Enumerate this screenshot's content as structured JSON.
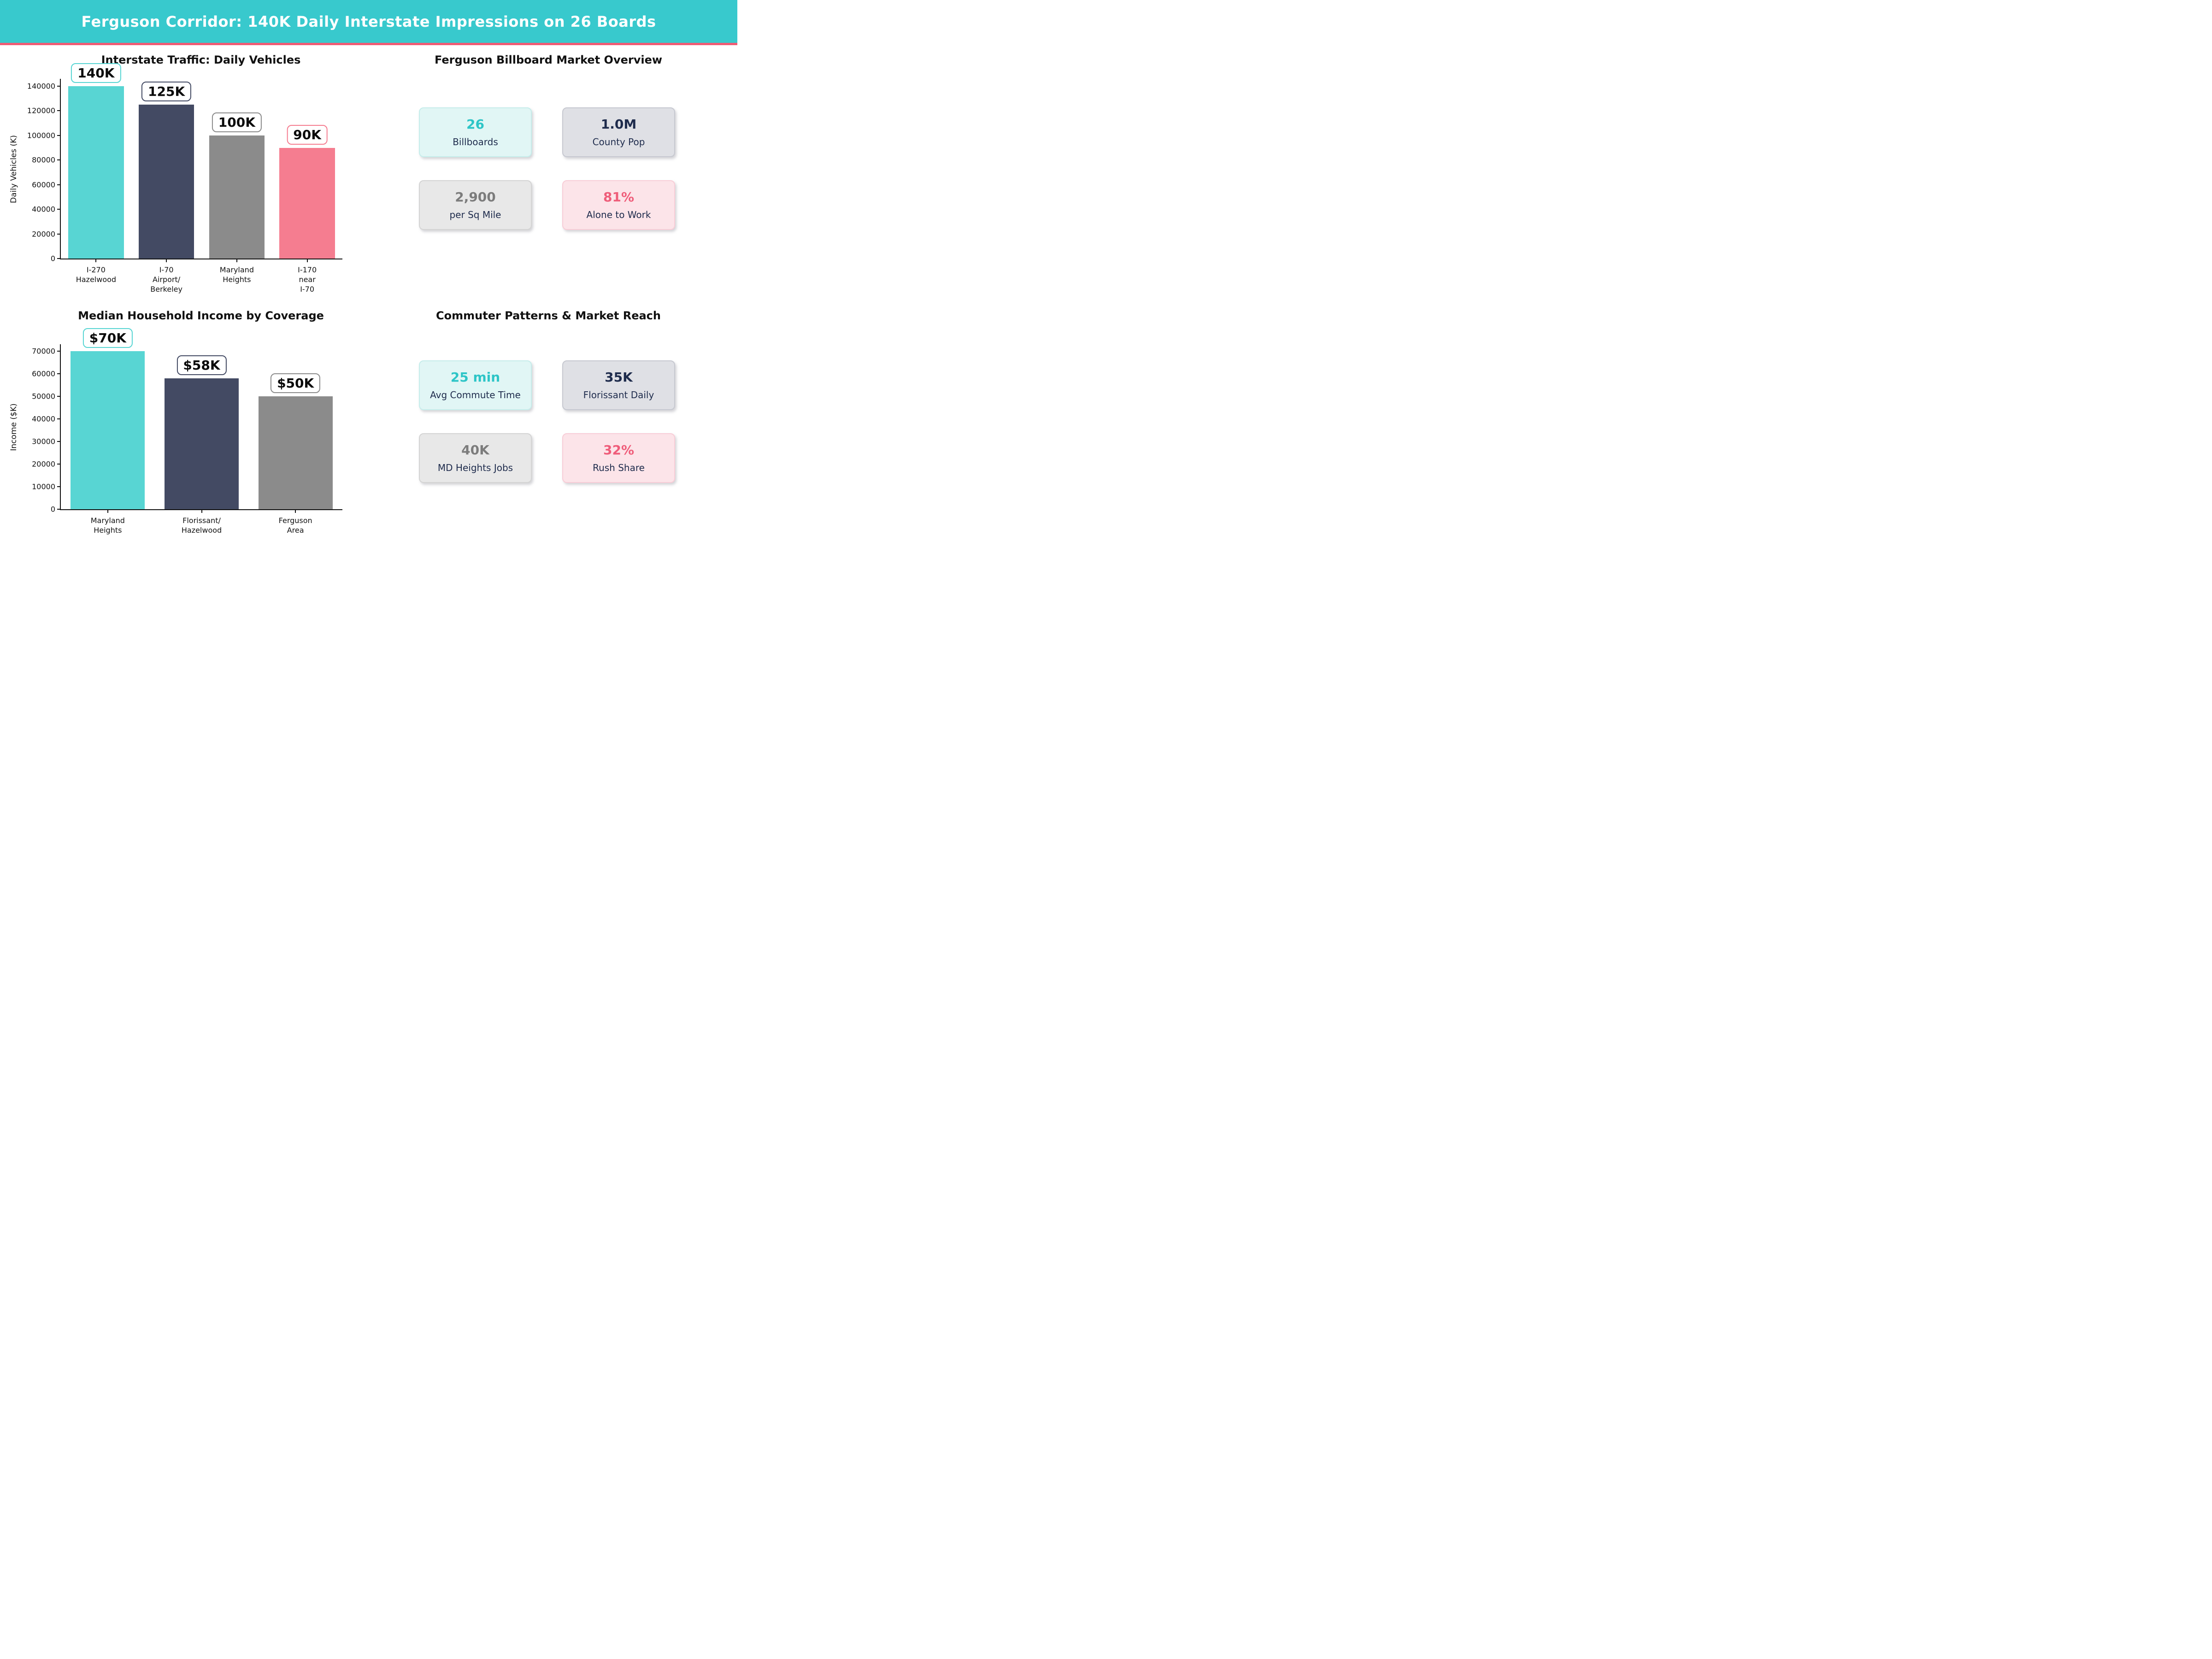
{
  "header": {
    "title": "Ferguson Corridor: 140K Daily Interstate Impressions on 26 Boards",
    "bg_color": "#38C9CD",
    "accent_color": "#EF5B74"
  },
  "chart_data": [
    {
      "type": "bar",
      "title": "Interstate Traffic: Daily Vehicles",
      "categories": [
        "I-270\nHazelwood",
        "I-70\nAirport/\nBerkeley",
        "Maryland\nHeights",
        "I-170 near\nI-70"
      ],
      "values": [
        140000,
        125000,
        100000,
        90000
      ],
      "bar_labels": [
        "140K",
        "125K",
        "100K",
        "90K"
      ],
      "bar_colors": [
        "#58D5D3",
        "#434A63",
        "#8B8B8B",
        "#F57D90"
      ],
      "xlabel": "",
      "ylabel": "Daily Vehicles (K)",
      "yticks": [
        0,
        20000,
        40000,
        60000,
        80000,
        100000,
        120000,
        140000
      ],
      "ylim": [
        0,
        146000
      ],
      "grid": false,
      "legend": "none"
    },
    {
      "type": "bar",
      "title": "Median Household Income by Coverage",
      "categories": [
        "Maryland\nHeights",
        "Florissant/\nHazelwood",
        "Ferguson\nArea"
      ],
      "values": [
        70000,
        58000,
        50000
      ],
      "bar_labels": [
        "$70K",
        "$58K",
        "$50K"
      ],
      "bar_colors": [
        "#58D5D3",
        "#434A63",
        "#8B8B8B"
      ],
      "xlabel": "",
      "ylabel": "Income ($K)",
      "yticks": [
        0,
        10000,
        20000,
        30000,
        40000,
        50000,
        60000,
        70000
      ],
      "ylim": [
        0,
        73000
      ],
      "grid": false,
      "legend": "none"
    }
  ],
  "panels": [
    {
      "title": "Ferguson Billboard Market Overview",
      "cards": [
        {
          "value": "26",
          "label": "Billboards",
          "value_color": "#2DC5C7",
          "bg": "#E1F6F5",
          "border": "#C6EDEB"
        },
        {
          "value": "1.0M",
          "label": "County Pop",
          "value_color": "#1E2B4C",
          "bg": "#DFE0E5",
          "border": "#C6C8D0"
        },
        {
          "value": "2,900",
          "label": "per Sq Mile",
          "value_color": "#7C7C7C",
          "bg": "#E8E8E8",
          "border": "#D4D4D4"
        },
        {
          "value": "81%",
          "label": "Alone to Work",
          "value_color": "#EF5D7A",
          "bg": "#FCE4E9",
          "border": "#F8CDD7"
        }
      ]
    },
    {
      "title": "Commuter Patterns & Market Reach",
      "cards": [
        {
          "value": "25 min",
          "label": "Avg Commute Time",
          "value_color": "#2DC5C7",
          "bg": "#E1F6F5",
          "border": "#C6EDEB"
        },
        {
          "value": "35K",
          "label": "Florissant Daily",
          "value_color": "#1E2B4C",
          "bg": "#DFE0E5",
          "border": "#C6C8D0"
        },
        {
          "value": "40K",
          "label": "MD Heights Jobs",
          "value_color": "#7C7C7C",
          "bg": "#E8E8E8",
          "border": "#D4D4D4"
        },
        {
          "value": "32%",
          "label": "Rush Share",
          "value_color": "#EF5D7A",
          "bg": "#FCE4E9",
          "border": "#F8CDD7"
        }
      ]
    }
  ]
}
